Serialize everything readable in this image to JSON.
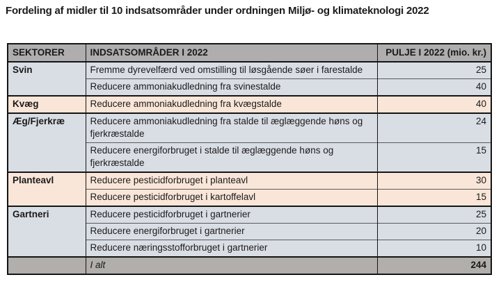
{
  "title": "Fordeling af midler til 10 indsatsområder under ordningen Miljø- og klimateknologi 2022",
  "colors": {
    "header_gray": "#afadad",
    "total_gray": "#b1aeab",
    "row_blue_gray": "#d9dee5",
    "row_peach": "#fae6d8",
    "border_dark": "#141414"
  },
  "table": {
    "headers": [
      "SEKTORER",
      "INDSATSOMRÅDER I 2022",
      "PULJE I 2022 (mio. kr.)"
    ],
    "sections": [
      {
        "sector": "Svin",
        "rows": [
          {
            "area": "Fremme dyrevelfærd ved omstilling til løsgående søer i farestalde",
            "amount": "25"
          },
          {
            "area": "Reducere ammoniakudledning fra svinestalde",
            "amount": "40"
          }
        ]
      },
      {
        "sector": "Kvæg",
        "rows": [
          {
            "area": "Reducere ammoniakudledning fra kvægstalde",
            "amount": "40"
          }
        ]
      },
      {
        "sector": "Æg/Fjerkræ",
        "rows": [
          {
            "area": "Reducere ammoniakudledning fra stalde til æglæggende høns og fjerkræstalde",
            "amount": "24"
          },
          {
            "area": "Reducere energiforbruget i stalde til æglæggende høns og fjerkræstalde",
            "amount": "15"
          }
        ]
      },
      {
        "sector": "Planteavl",
        "rows": [
          {
            "area": "Reducere pesticidforbruget i planteavl",
            "amount": "30"
          },
          {
            "area": "Reducere pesticidforbruget i kartoffelavl",
            "amount": "15"
          }
        ]
      },
      {
        "sector": "Gartneri",
        "rows": [
          {
            "area": "Reducere pesticidforbruget i gartnerier",
            "amount": "25"
          },
          {
            "area": "Reducere energiforbruget i gartnerier",
            "amount": "20"
          },
          {
            "area": "Reducere næringsstofforbruget i gartnerier",
            "amount": "10"
          }
        ]
      }
    ],
    "total": {
      "label": "I alt",
      "amount": "244"
    }
  }
}
